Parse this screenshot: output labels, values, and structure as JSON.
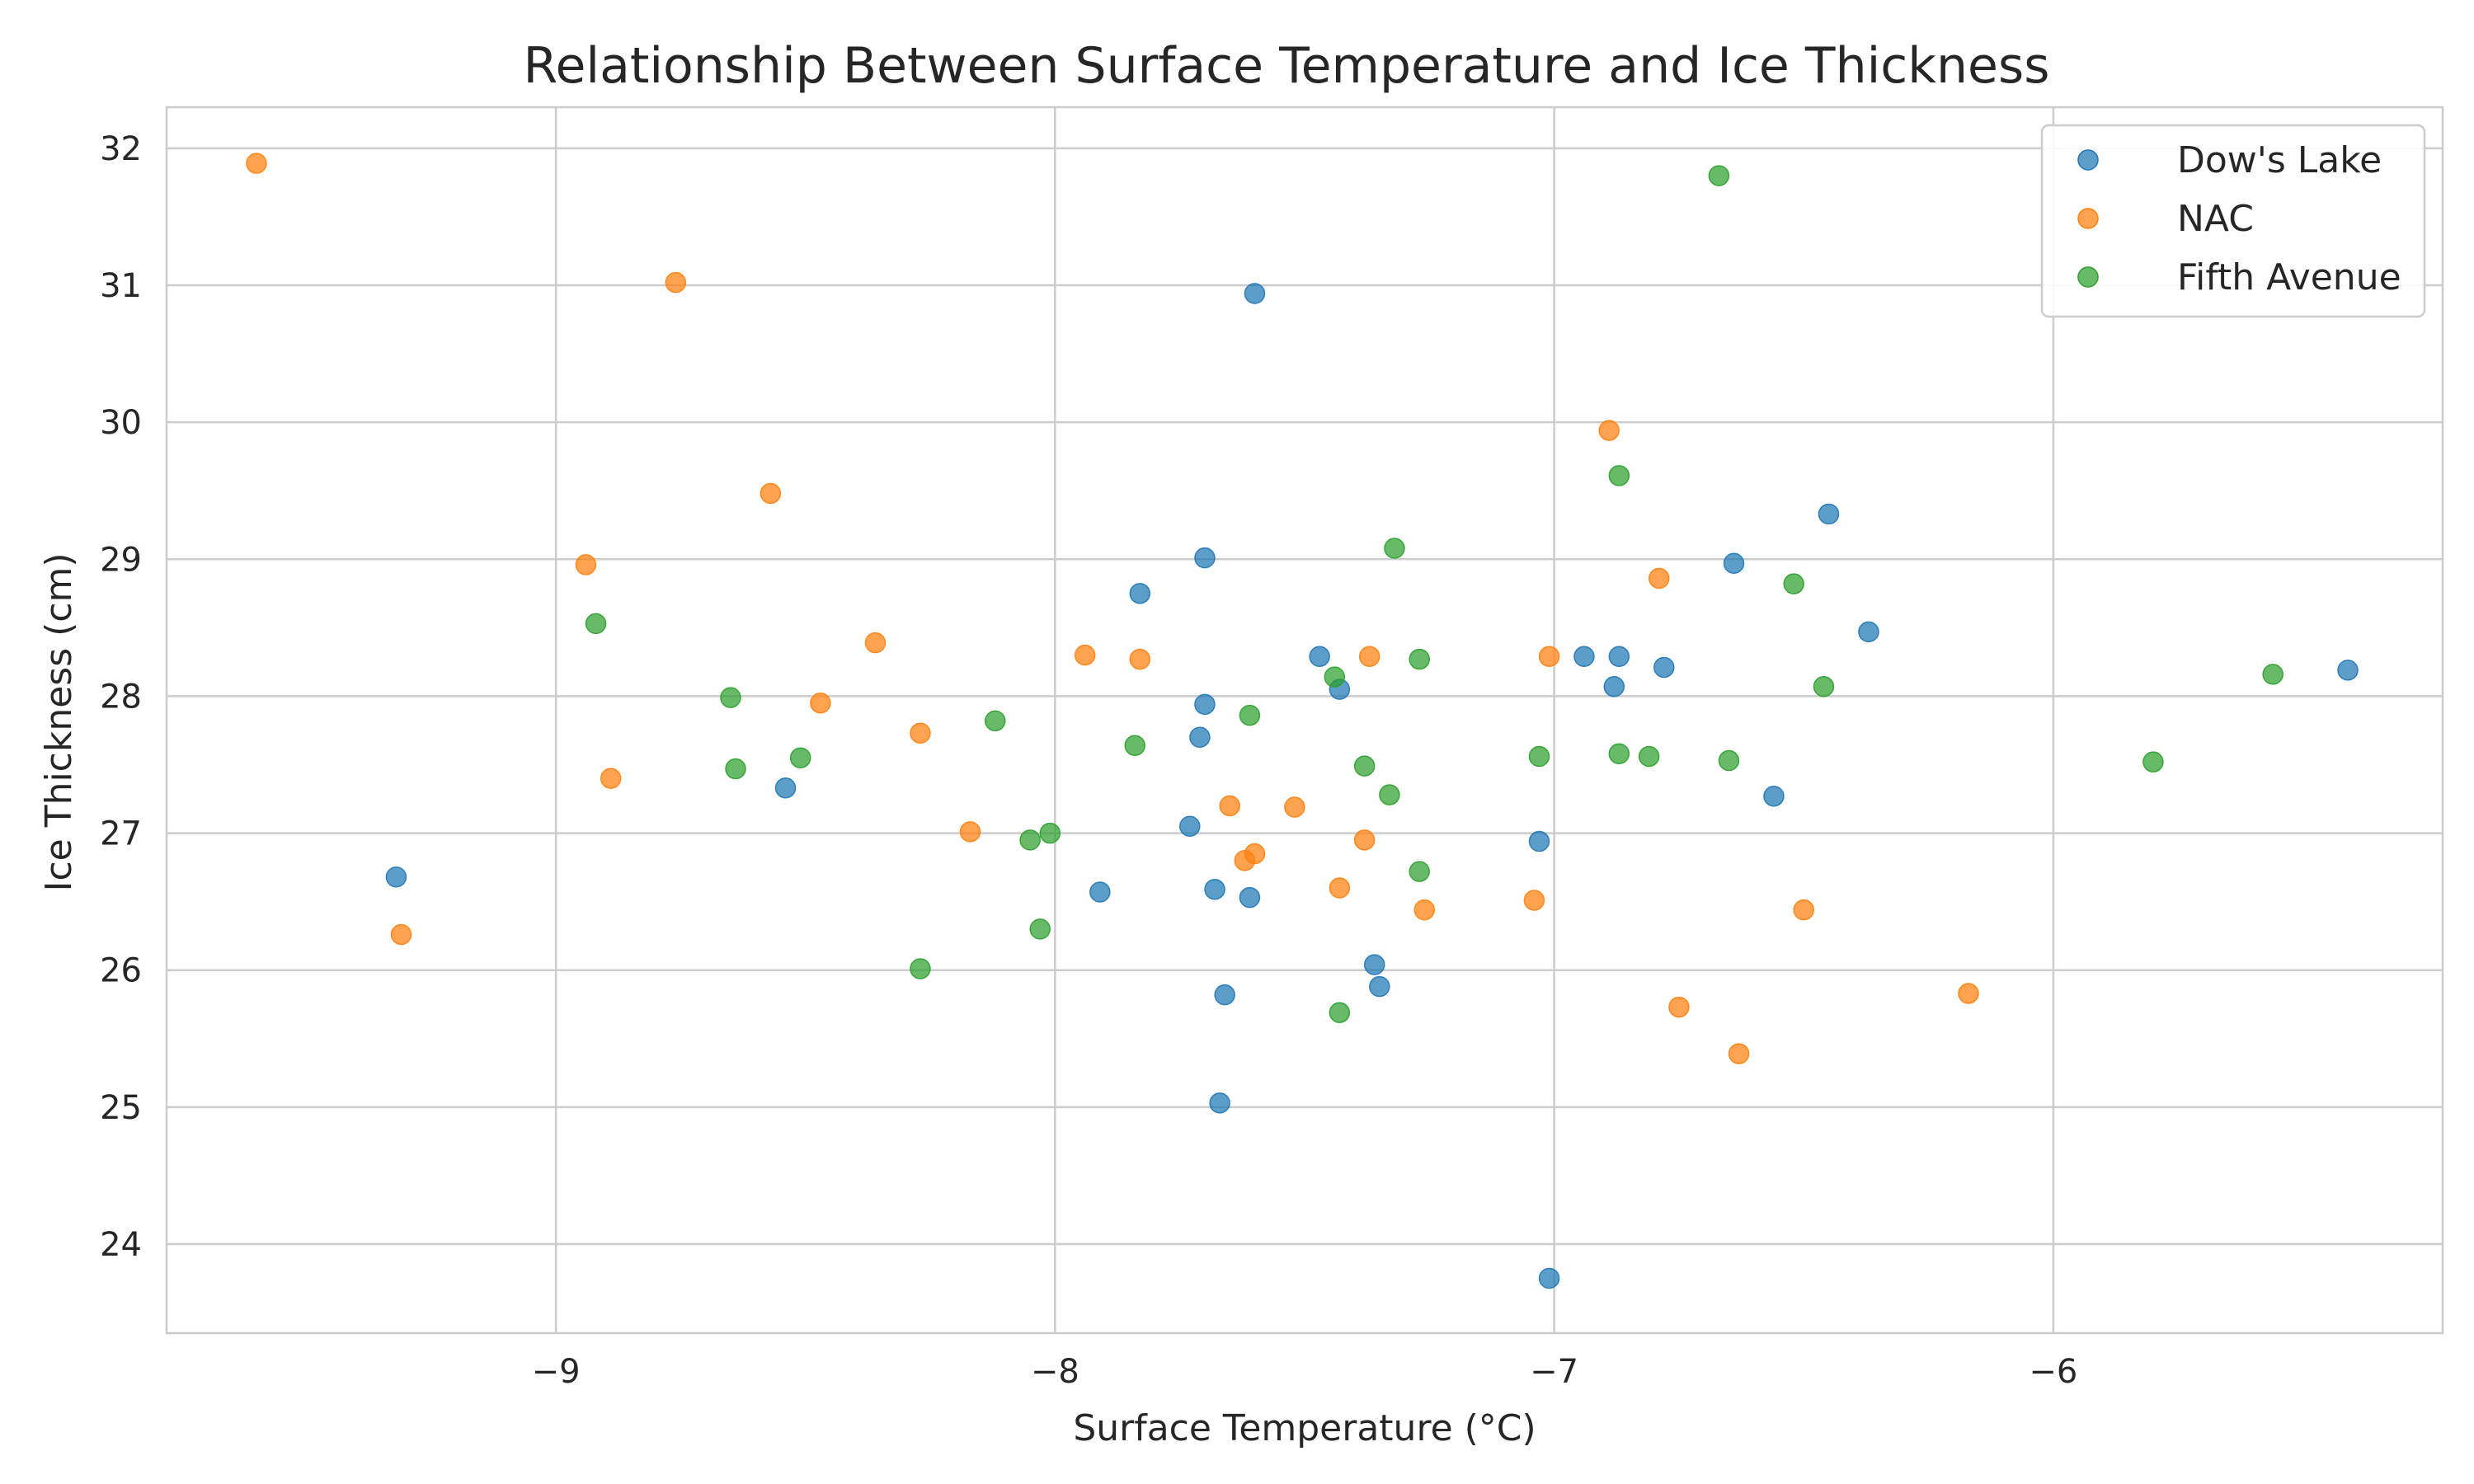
{
  "chart_data": {
    "type": "scatter",
    "title": "Relationship Between Surface Temperature and Ice Thickness",
    "xlabel": "Surface Temperature (°C)",
    "ylabel": "Ice Thickness (cm)",
    "xlim": [
      -9.78,
      -5.22
    ],
    "ylim": [
      23.35,
      32.3
    ],
    "xticks": [
      -9,
      -8,
      -7,
      -6
    ],
    "xtick_labels": [
      "−9",
      "−8",
      "−7",
      "−6"
    ],
    "yticks": [
      24,
      25,
      26,
      27,
      28,
      29,
      30,
      31,
      32
    ],
    "yticklabels": [
      "24",
      "25",
      "26",
      "27",
      "28",
      "29",
      "30",
      "31",
      "32"
    ],
    "grid": true,
    "legend_position": "top-right",
    "series": [
      {
        "name": "Dow's Lake",
        "color": "#1f77b4",
        "points": [
          [
            -9.32,
            26.68
          ],
          [
            -8.54,
            27.33
          ],
          [
            -7.91,
            26.57
          ],
          [
            -7.83,
            28.75
          ],
          [
            -7.7,
            29.01
          ],
          [
            -7.7,
            27.94
          ],
          [
            -7.71,
            27.7
          ],
          [
            -7.73,
            27.05
          ],
          [
            -7.68,
            26.59
          ],
          [
            -7.61,
            26.53
          ],
          [
            -7.66,
            25.82
          ],
          [
            -7.67,
            25.03
          ],
          [
            -7.6,
            30.94
          ],
          [
            -7.47,
            28.29
          ],
          [
            -7.43,
            28.05
          ],
          [
            -7.36,
            26.04
          ],
          [
            -7.35,
            25.88
          ],
          [
            -7.03,
            26.94
          ],
          [
            -7.01,
            23.75
          ],
          [
            -6.94,
            28.29
          ],
          [
            -6.87,
            28.29
          ],
          [
            -6.88,
            28.07
          ],
          [
            -6.78,
            28.21
          ],
          [
            -6.64,
            28.97
          ],
          [
            -6.56,
            27.27
          ],
          [
            -6.45,
            29.33
          ],
          [
            -6.37,
            28.47
          ],
          [
            -5.41,
            28.19
          ]
        ]
      },
      {
        "name": "NAC",
        "color": "#ff7f0e",
        "points": [
          [
            -9.6,
            31.89
          ],
          [
            -9.31,
            26.26
          ],
          [
            -8.94,
            28.96
          ],
          [
            -8.89,
            27.4
          ],
          [
            -8.76,
            31.02
          ],
          [
            -8.57,
            29.48
          ],
          [
            -8.47,
            27.95
          ],
          [
            -8.36,
            28.39
          ],
          [
            -8.27,
            27.73
          ],
          [
            -8.17,
            27.01
          ],
          [
            -7.94,
            28.3
          ],
          [
            -7.83,
            28.27
          ],
          [
            -7.65,
            27.2
          ],
          [
            -7.62,
            26.8
          ],
          [
            -7.6,
            26.85
          ],
          [
            -7.52,
            27.19
          ],
          [
            -7.43,
            26.6
          ],
          [
            -7.38,
            26.95
          ],
          [
            -7.37,
            28.29
          ],
          [
            -7.26,
            26.44
          ],
          [
            -7.04,
            26.51
          ],
          [
            -7.01,
            28.29
          ],
          [
            -6.89,
            29.94
          ],
          [
            -6.79,
            28.86
          ],
          [
            -6.75,
            25.73
          ],
          [
            -6.63,
            25.39
          ],
          [
            -6.5,
            26.44
          ],
          [
            -6.17,
            25.83
          ]
        ]
      },
      {
        "name": "Fifth Avenue",
        "color": "#2ca02c",
        "points": [
          [
            -8.92,
            28.53
          ],
          [
            -8.65,
            27.99
          ],
          [
            -8.64,
            27.47
          ],
          [
            -8.51,
            27.55
          ],
          [
            -8.27,
            26.01
          ],
          [
            -8.12,
            27.82
          ],
          [
            -8.05,
            26.95
          ],
          [
            -8.03,
            26.3
          ],
          [
            -8.01,
            27.0
          ],
          [
            -7.84,
            27.64
          ],
          [
            -7.61,
            27.86
          ],
          [
            -7.44,
            28.14
          ],
          [
            -7.43,
            25.69
          ],
          [
            -7.38,
            27.49
          ],
          [
            -7.33,
            27.28
          ],
          [
            -7.32,
            29.08
          ],
          [
            -7.27,
            28.27
          ],
          [
            -7.27,
            26.72
          ],
          [
            -7.03,
            27.56
          ],
          [
            -6.87,
            27.58
          ],
          [
            -6.87,
            29.61
          ],
          [
            -6.81,
            27.56
          ],
          [
            -6.67,
            31.8
          ],
          [
            -6.65,
            27.53
          ],
          [
            -6.52,
            28.82
          ],
          [
            -6.46,
            28.07
          ],
          [
            -5.8,
            27.52
          ],
          [
            -5.56,
            28.16
          ]
        ]
      }
    ]
  }
}
